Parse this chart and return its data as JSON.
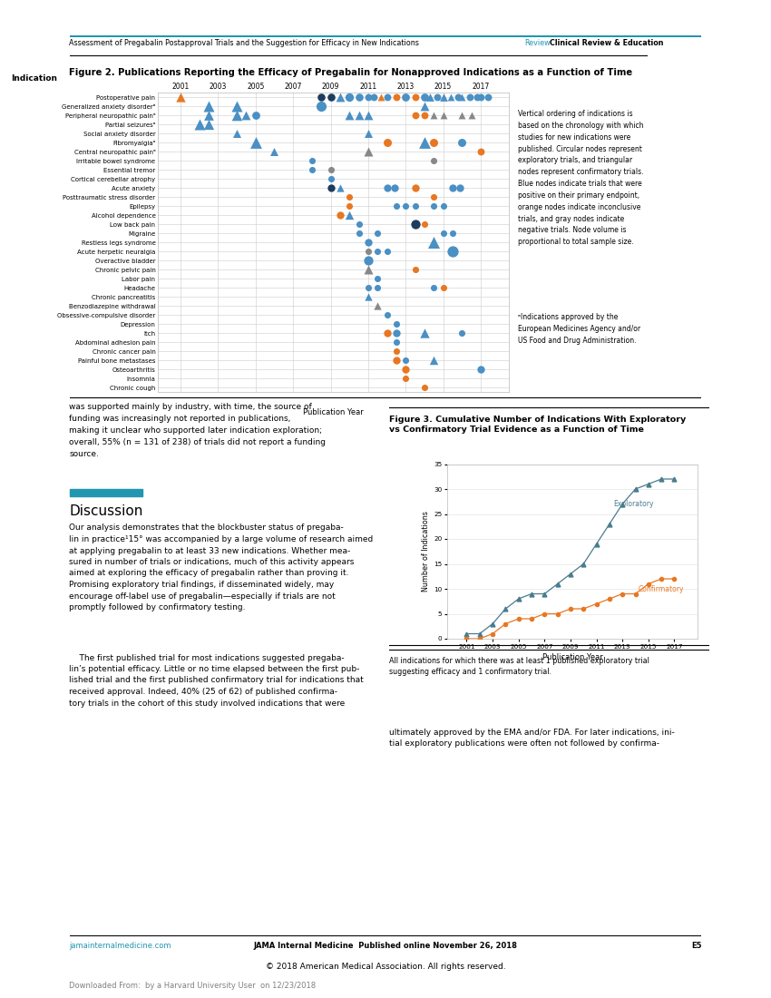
{
  "header_text": "Assessment of Pregabalin Postapproval Trials and the Suggestion for Efficacy in New Indications",
  "header_right_review": "Review",
  "header_right_section": "Clinical Review & Education",
  "fig2_title": "Figure 2. Publications Reporting the Efficacy of Pregabalin for Nonapproved Indications as a Function of Time",
  "fig2_xlabel": "Publication Year",
  "fig2_years": [
    2001,
    2003,
    2005,
    2007,
    2009,
    2011,
    2013,
    2015,
    2017
  ],
  "fig2_indications": [
    "Postoperative pain",
    "Generalized anxiety disorderᵃ",
    "Peripheral neuropathic painᵃ",
    "Partial seizuresᵃ",
    "Social anxiety disorder",
    "Fibromyalgiaᵃ",
    "Central neuropathic painᵃ",
    "Irritable bowel syndrome",
    "Essential tremor",
    "Cortical cerebellar atrophy",
    "Acute anxiety",
    "Posttraumatic stress disorder",
    "Epilepsy",
    "Alcohol dependence",
    "Low back pain",
    "Migraine",
    "Restless legs syndrome",
    "Acute herpetic neuralgia",
    "Overactive bladder",
    "Chronic pelvic pain",
    "Labor pain",
    "Headache",
    "Chronic pancreatitis",
    "Benzodiazepine withdrawal",
    "Obsessive-compulsive disorder",
    "Depression",
    "Itch",
    "Abdominal adhesion pain",
    "Chronic cancer pain",
    "Painful bone metastases",
    "Osteoarthritis",
    "Insomnia",
    "Chronic cough"
  ],
  "fig2_points": [
    {
      "i": 0,
      "year": 2001.0,
      "type": "T",
      "color": "orange",
      "size": 55
    },
    {
      "i": 0,
      "year": 2008.5,
      "type": "C",
      "color": "darkblue",
      "size": 38
    },
    {
      "i": 0,
      "year": 2009.0,
      "type": "C",
      "color": "darkblue",
      "size": 38
    },
    {
      "i": 0,
      "year": 2009.5,
      "type": "T",
      "color": "blue",
      "size": 50
    },
    {
      "i": 0,
      "year": 2010.0,
      "type": "C",
      "color": "blue",
      "size": 45
    },
    {
      "i": 0,
      "year": 2010.5,
      "type": "C",
      "color": "blue",
      "size": 38
    },
    {
      "i": 0,
      "year": 2011.0,
      "type": "C",
      "color": "blue",
      "size": 32
    },
    {
      "i": 0,
      "year": 2011.3,
      "type": "C",
      "color": "blue",
      "size": 32
    },
    {
      "i": 0,
      "year": 2011.7,
      "type": "T",
      "color": "orange",
      "size": 32
    },
    {
      "i": 0,
      "year": 2012.0,
      "type": "C",
      "color": "blue",
      "size": 32
    },
    {
      "i": 0,
      "year": 2012.5,
      "type": "C",
      "color": "orange",
      "size": 32
    },
    {
      "i": 0,
      "year": 2013.0,
      "type": "C",
      "color": "blue",
      "size": 40
    },
    {
      "i": 0,
      "year": 2013.5,
      "type": "C",
      "color": "orange",
      "size": 32
    },
    {
      "i": 0,
      "year": 2014.0,
      "type": "C",
      "color": "blue",
      "size": 40
    },
    {
      "i": 0,
      "year": 2014.3,
      "type": "T",
      "color": "blue",
      "size": 40
    },
    {
      "i": 0,
      "year": 2014.7,
      "type": "C",
      "color": "blue",
      "size": 32
    },
    {
      "i": 0,
      "year": 2015.0,
      "type": "T",
      "color": "blue",
      "size": 40
    },
    {
      "i": 0,
      "year": 2015.4,
      "type": "T",
      "color": "blue",
      "size": 32
    },
    {
      "i": 0,
      "year": 2015.8,
      "type": "C",
      "color": "blue",
      "size": 32
    },
    {
      "i": 0,
      "year": 2016.0,
      "type": "T",
      "color": "blue",
      "size": 32
    },
    {
      "i": 0,
      "year": 2016.4,
      "type": "C",
      "color": "blue",
      "size": 32
    },
    {
      "i": 0,
      "year": 2016.8,
      "type": "C",
      "color": "blue",
      "size": 32
    },
    {
      "i": 0,
      "year": 2017.0,
      "type": "C",
      "color": "blue",
      "size": 32
    },
    {
      "i": 0,
      "year": 2017.4,
      "type": "C",
      "color": "blue",
      "size": 32
    },
    {
      "i": 1,
      "year": 2002.5,
      "type": "T",
      "color": "blue",
      "size": 75
    },
    {
      "i": 1,
      "year": 2004.0,
      "type": "T",
      "color": "blue",
      "size": 75
    },
    {
      "i": 1,
      "year": 2008.5,
      "type": "C",
      "color": "blue",
      "size": 65
    },
    {
      "i": 1,
      "year": 2014.0,
      "type": "T",
      "color": "blue",
      "size": 50
    },
    {
      "i": 2,
      "year": 2002.5,
      "type": "T",
      "color": "blue",
      "size": 60
    },
    {
      "i": 2,
      "year": 2004.0,
      "type": "T",
      "color": "blue",
      "size": 70
    },
    {
      "i": 2,
      "year": 2004.5,
      "type": "T",
      "color": "blue",
      "size": 50
    },
    {
      "i": 2,
      "year": 2005.0,
      "type": "C",
      "color": "blue",
      "size": 40
    },
    {
      "i": 2,
      "year": 2010.0,
      "type": "T",
      "color": "blue",
      "size": 50
    },
    {
      "i": 2,
      "year": 2010.5,
      "type": "T",
      "color": "blue",
      "size": 50
    },
    {
      "i": 2,
      "year": 2011.0,
      "type": "T",
      "color": "blue",
      "size": 50
    },
    {
      "i": 2,
      "year": 2013.5,
      "type": "C",
      "color": "orange",
      "size": 32
    },
    {
      "i": 2,
      "year": 2014.0,
      "type": "C",
      "color": "orange",
      "size": 32
    },
    {
      "i": 2,
      "year": 2014.5,
      "type": "T",
      "color": "gray",
      "size": 32
    },
    {
      "i": 2,
      "year": 2015.0,
      "type": "T",
      "color": "gray",
      "size": 32
    },
    {
      "i": 2,
      "year": 2016.0,
      "type": "T",
      "color": "gray",
      "size": 32
    },
    {
      "i": 2,
      "year": 2016.5,
      "type": "T",
      "color": "gray",
      "size": 32
    },
    {
      "i": 3,
      "year": 2002.0,
      "type": "T",
      "color": "blue",
      "size": 75
    },
    {
      "i": 3,
      "year": 2002.5,
      "type": "T",
      "color": "blue",
      "size": 65
    },
    {
      "i": 4,
      "year": 2004.0,
      "type": "T",
      "color": "blue",
      "size": 42
    },
    {
      "i": 4,
      "year": 2011.0,
      "type": "T",
      "color": "blue",
      "size": 42
    },
    {
      "i": 5,
      "year": 2005.0,
      "type": "T",
      "color": "blue",
      "size": 85
    },
    {
      "i": 5,
      "year": 2012.0,
      "type": "C",
      "color": "orange",
      "size": 42
    },
    {
      "i": 5,
      "year": 2014.0,
      "type": "T",
      "color": "blue",
      "size": 85
    },
    {
      "i": 5,
      "year": 2014.5,
      "type": "C",
      "color": "orange",
      "size": 42
    },
    {
      "i": 5,
      "year": 2016.0,
      "type": "C",
      "color": "blue",
      "size": 42
    },
    {
      "i": 6,
      "year": 2006.0,
      "type": "T",
      "color": "blue",
      "size": 42
    },
    {
      "i": 6,
      "year": 2011.0,
      "type": "T",
      "color": "gray",
      "size": 52
    },
    {
      "i": 6,
      "year": 2017.0,
      "type": "C",
      "color": "orange",
      "size": 32
    },
    {
      "i": 7,
      "year": 2008.0,
      "type": "C",
      "color": "blue",
      "size": 26
    },
    {
      "i": 7,
      "year": 2014.5,
      "type": "C",
      "color": "gray",
      "size": 26
    },
    {
      "i": 8,
      "year": 2008.0,
      "type": "C",
      "color": "blue",
      "size": 26
    },
    {
      "i": 8,
      "year": 2009.0,
      "type": "C",
      "color": "gray",
      "size": 26
    },
    {
      "i": 9,
      "year": 2009.0,
      "type": "C",
      "color": "blue",
      "size": 26
    },
    {
      "i": 10,
      "year": 2009.0,
      "type": "C",
      "color": "darkblue",
      "size": 36
    },
    {
      "i": 10,
      "year": 2009.5,
      "type": "T",
      "color": "blue",
      "size": 36
    },
    {
      "i": 10,
      "year": 2012.0,
      "type": "C",
      "color": "blue",
      "size": 36
    },
    {
      "i": 10,
      "year": 2012.4,
      "type": "C",
      "color": "blue",
      "size": 36
    },
    {
      "i": 10,
      "year": 2013.5,
      "type": "C",
      "color": "orange",
      "size": 36
    },
    {
      "i": 10,
      "year": 2015.5,
      "type": "C",
      "color": "blue",
      "size": 36
    },
    {
      "i": 10,
      "year": 2015.9,
      "type": "C",
      "color": "blue",
      "size": 36
    },
    {
      "i": 11,
      "year": 2010.0,
      "type": "C",
      "color": "orange",
      "size": 26
    },
    {
      "i": 11,
      "year": 2014.5,
      "type": "C",
      "color": "orange",
      "size": 26
    },
    {
      "i": 12,
      "year": 2010.0,
      "type": "C",
      "color": "orange",
      "size": 26
    },
    {
      "i": 12,
      "year": 2012.5,
      "type": "C",
      "color": "blue",
      "size": 26
    },
    {
      "i": 12,
      "year": 2013.0,
      "type": "C",
      "color": "blue",
      "size": 26
    },
    {
      "i": 12,
      "year": 2013.5,
      "type": "C",
      "color": "blue",
      "size": 26
    },
    {
      "i": 12,
      "year": 2014.5,
      "type": "C",
      "color": "blue",
      "size": 26
    },
    {
      "i": 12,
      "year": 2015.0,
      "type": "C",
      "color": "blue",
      "size": 26
    },
    {
      "i": 13,
      "year": 2009.5,
      "type": "C",
      "color": "orange",
      "size": 36
    },
    {
      "i": 13,
      "year": 2010.0,
      "type": "T",
      "color": "blue",
      "size": 46
    },
    {
      "i": 14,
      "year": 2010.5,
      "type": "C",
      "color": "blue",
      "size": 26
    },
    {
      "i": 14,
      "year": 2013.5,
      "type": "C",
      "color": "darkblue",
      "size": 55
    },
    {
      "i": 14,
      "year": 2014.0,
      "type": "C",
      "color": "orange",
      "size": 26
    },
    {
      "i": 15,
      "year": 2010.5,
      "type": "C",
      "color": "blue",
      "size": 26
    },
    {
      "i": 15,
      "year": 2011.5,
      "type": "C",
      "color": "blue",
      "size": 26
    },
    {
      "i": 15,
      "year": 2015.0,
      "type": "C",
      "color": "blue",
      "size": 26
    },
    {
      "i": 15,
      "year": 2015.5,
      "type": "C",
      "color": "blue",
      "size": 26
    },
    {
      "i": 16,
      "year": 2011.0,
      "type": "C",
      "color": "blue",
      "size": 36
    },
    {
      "i": 16,
      "year": 2014.5,
      "type": "T",
      "color": "blue",
      "size": 88
    },
    {
      "i": 17,
      "year": 2011.0,
      "type": "C",
      "color": "gray",
      "size": 26
    },
    {
      "i": 17,
      "year": 2011.5,
      "type": "C",
      "color": "blue",
      "size": 26
    },
    {
      "i": 17,
      "year": 2012.0,
      "type": "C",
      "color": "blue",
      "size": 26
    },
    {
      "i": 17,
      "year": 2015.5,
      "type": "C",
      "color": "blue",
      "size": 78
    },
    {
      "i": 18,
      "year": 2011.0,
      "type": "C",
      "color": "blue",
      "size": 55
    },
    {
      "i": 19,
      "year": 2011.0,
      "type": "T",
      "color": "gray",
      "size": 52
    },
    {
      "i": 19,
      "year": 2013.5,
      "type": "C",
      "color": "orange",
      "size": 26
    },
    {
      "i": 20,
      "year": 2011.5,
      "type": "C",
      "color": "blue",
      "size": 26
    },
    {
      "i": 21,
      "year": 2011.0,
      "type": "C",
      "color": "blue",
      "size": 26
    },
    {
      "i": 21,
      "year": 2011.5,
      "type": "C",
      "color": "blue",
      "size": 26
    },
    {
      "i": 21,
      "year": 2014.5,
      "type": "C",
      "color": "blue",
      "size": 26
    },
    {
      "i": 21,
      "year": 2015.0,
      "type": "C",
      "color": "orange",
      "size": 26
    },
    {
      "i": 22,
      "year": 2011.0,
      "type": "T",
      "color": "blue",
      "size": 36
    },
    {
      "i": 23,
      "year": 2011.5,
      "type": "T",
      "color": "gray",
      "size": 36
    },
    {
      "i": 24,
      "year": 2012.0,
      "type": "C",
      "color": "blue",
      "size": 26
    },
    {
      "i": 25,
      "year": 2012.5,
      "type": "C",
      "color": "blue",
      "size": 26
    },
    {
      "i": 26,
      "year": 2012.0,
      "type": "C",
      "color": "orange",
      "size": 36
    },
    {
      "i": 26,
      "year": 2012.5,
      "type": "C",
      "color": "blue",
      "size": 36
    },
    {
      "i": 26,
      "year": 2014.0,
      "type": "T",
      "color": "blue",
      "size": 56
    },
    {
      "i": 26,
      "year": 2016.0,
      "type": "C",
      "color": "blue",
      "size": 26
    },
    {
      "i": 27,
      "year": 2012.5,
      "type": "C",
      "color": "blue",
      "size": 26
    },
    {
      "i": 28,
      "year": 2012.5,
      "type": "C",
      "color": "orange",
      "size": 26
    },
    {
      "i": 29,
      "year": 2012.5,
      "type": "C",
      "color": "orange",
      "size": 36
    },
    {
      "i": 29,
      "year": 2013.0,
      "type": "C",
      "color": "blue",
      "size": 26
    },
    {
      "i": 29,
      "year": 2014.5,
      "type": "T",
      "color": "blue",
      "size": 46
    },
    {
      "i": 30,
      "year": 2013.0,
      "type": "C",
      "color": "orange",
      "size": 36
    },
    {
      "i": 30,
      "year": 2017.0,
      "type": "C",
      "color": "blue",
      "size": 36
    },
    {
      "i": 31,
      "year": 2013.0,
      "type": "C",
      "color": "orange",
      "size": 26
    },
    {
      "i": 32,
      "year": 2014.0,
      "type": "C",
      "color": "orange",
      "size": 26
    }
  ],
  "fig2_legend_text": "Vertical ordering of indications is\nbased on the chronology with which\nstudies for new indications were\npublished. Circular nodes represent\nexploratory trials, and triangular\nnodes represent confirmatory trials.\nBlue nodes indicate trials that were\npositive on their primary endpoint,\norange nodes indicate inconclusive\ntrials, and gray nodes indicate\nnegative trials. Node volume is\nproportional to total sample size.",
  "fig2_footnote": "ᵃIndications approved by the\nEuropean Medicines Agency and/or\nUS Food and Drug Administration.",
  "fig3_title": "Figure 3. Cumulative Number of Indications With Exploratory\nvs Confirmatory Trial Evidence as a Function of Time",
  "fig3_xlabel": "Publication Year",
  "fig3_ylabel": "Number of Indications",
  "fig3_exploratory_years": [
    2001,
    2002,
    2003,
    2004,
    2005,
    2006,
    2007,
    2008,
    2009,
    2010,
    2011,
    2012,
    2013,
    2014,
    2015,
    2016,
    2017
  ],
  "fig3_exploratory_values": [
    1,
    1,
    3,
    6,
    8,
    9,
    9,
    11,
    13,
    15,
    19,
    23,
    27,
    30,
    31,
    32,
    32
  ],
  "fig3_confirmatory_years": [
    2001,
    2002,
    2003,
    2004,
    2005,
    2006,
    2007,
    2008,
    2009,
    2010,
    2011,
    2012,
    2013,
    2014,
    2015,
    2016,
    2017
  ],
  "fig3_confirmatory_values": [
    0,
    0,
    1,
    3,
    4,
    4,
    5,
    5,
    6,
    6,
    7,
    8,
    9,
    9,
    11,
    12,
    12
  ],
  "fig3_exploratory_color": "#4a7c8f",
  "fig3_confirmatory_color": "#e87722",
  "fig3_ylim": [
    0,
    35
  ],
  "fig3_caption": "All indications for which there was at least 1 published exploratory trial\nsuggesting efficacy and 1 confirmatory trial.",
  "left_text_paragraph": "was supported mainly by industry, with time, the source of\nfunding was increasingly not reported in publications,\nmaking it unclear who supported later indication exploration;\noverall, 55% (n = 131 of 238) of trials did not report a funding\nsource.",
  "discussion_title": "Discussion",
  "discussion_text": "Our analysis demonstrates that the blockbuster status of pregaba-\nlin in practice¹15° was accompanied by a large volume of research aimed\nat applying pregabalin to at least 33 new indications. Whether mea-\nsured in number of trials or indications, much of this activity appears\naimed at exploring the efficacy of pregabalin rather than proving it.\nPromising exploratory trial findings, if disseminated widely, may\nencourage off-label use of pregabalin—especially if trials are not\npromptly followed by confirmatory testing.",
  "discussion_text2": "    The first published trial for most indications suggested pregaba-\nlin’s potential efficacy. Little or no time elapsed between the first pub-\nlished trial and the first published confirmatory trial for indications that\nreceived approval. Indeed, 40% (25 of 62) of published confirma-\ntory trials in the cohort of this study involved indications that were",
  "bottom_right_text": "ultimately approved by the EMA and/or FDA. For later indications, ini-\ntial exploratory publications were often not followed by confirma-",
  "footer_left": "jamainternalmedicine.com",
  "footer_center": "JAMA Internal Medicine  Published online November 26, 2018",
  "footer_right": "E5",
  "copyright_text": "© 2018 American Medical Association. All rights reserved.",
  "watermark": "Downloaded From:  by a Harvard University User  on 12/23/2018"
}
